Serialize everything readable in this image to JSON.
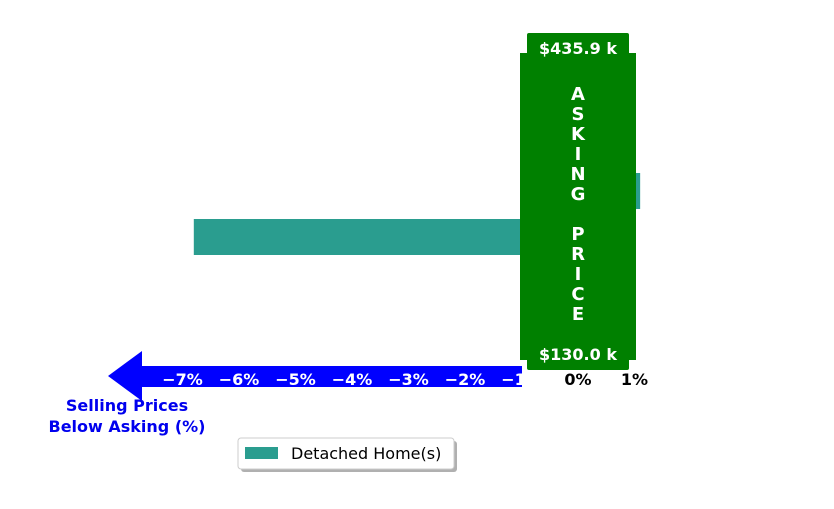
{
  "chart_data": {
    "type": "bar",
    "orientation": "horizontal",
    "series": [
      {
        "name": "Detached Home(s)",
        "color": "#2a9d8f",
        "values": [
          1.1,
          -6.8
        ]
      }
    ],
    "x_ticks": [
      "−7%",
      "−6%",
      "−5%",
      "−4%",
      "−3%",
      "−2%",
      "−1%",
      "0%",
      "1%"
    ],
    "x_tick_values": [
      -7,
      -6,
      -5,
      -4,
      -3,
      -2,
      -1,
      0,
      1
    ],
    "xlim": [
      -7.6,
      1.4
    ],
    "asking_price": {
      "letters": [
        "A",
        "S",
        "K",
        "I",
        "N",
        "G",
        "",
        "P",
        "R",
        "I",
        "C",
        "E"
      ],
      "high_label": "$435.9 k",
      "low_label": "$130.0 k",
      "color": "#008000"
    },
    "axis_note_lines": [
      "Selling Prices",
      "Below Asking (%)"
    ],
    "arrow_color": "#0000ff",
    "legend": {
      "position": "bottom-center",
      "label": "Detached Home(s)"
    }
  }
}
